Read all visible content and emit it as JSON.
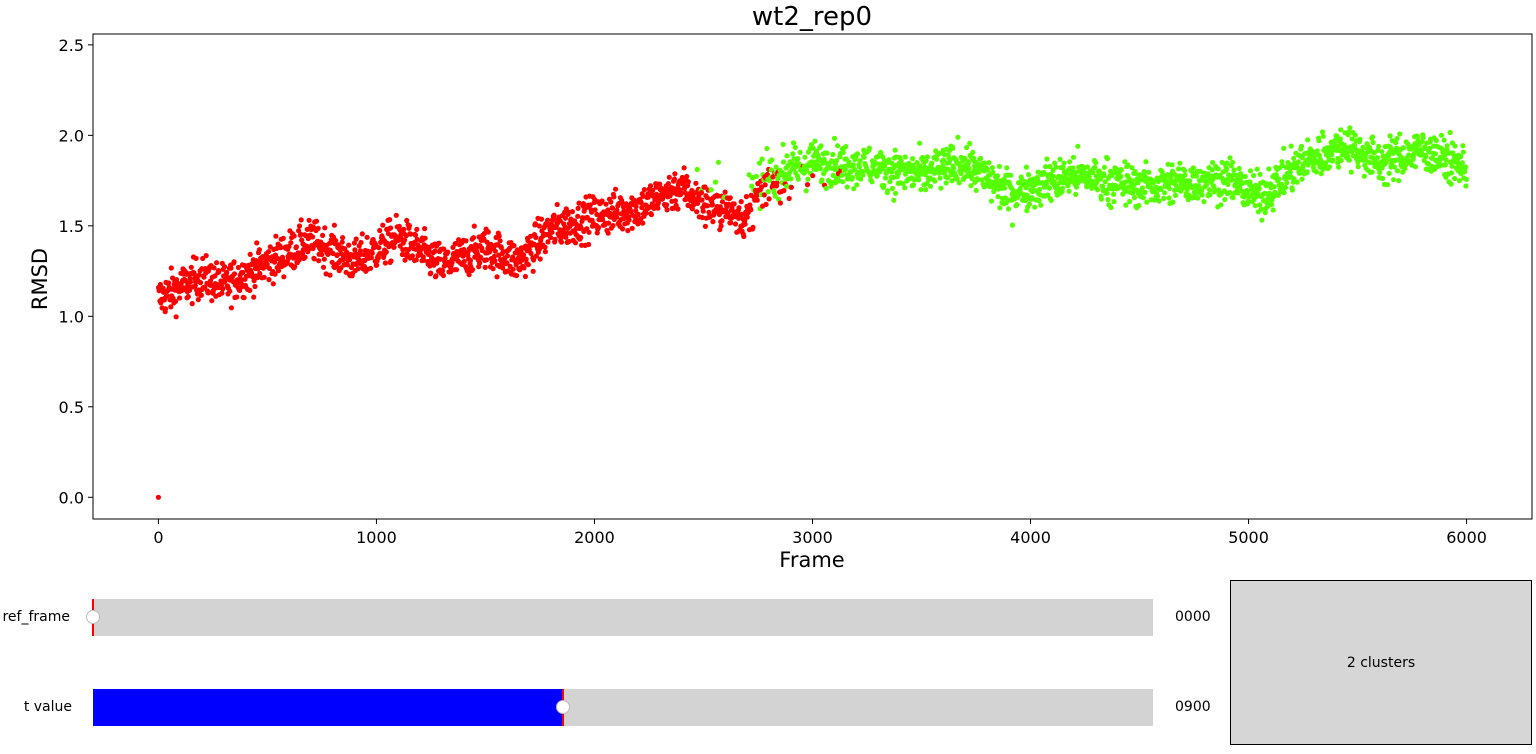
{
  "chart_data": {
    "type": "scatter",
    "title": "wt2_rep0",
    "xlabel": "Frame",
    "ylabel": "RMSD",
    "xlim": [
      -300,
      6300
    ],
    "ylim": [
      -0.12,
      2.56
    ],
    "xticks": [
      0,
      1000,
      2000,
      3000,
      4000,
      5000,
      6000
    ],
    "yticks": [
      0.0,
      0.5,
      1.0,
      1.5,
      2.0,
      2.5
    ],
    "xtick_labels": [
      "0",
      "1000",
      "2000",
      "3000",
      "4000",
      "5000",
      "6000"
    ],
    "ytick_labels": [
      "0.0",
      "0.5",
      "1.0",
      "1.5",
      "2.0",
      "2.5"
    ],
    "grid": false,
    "x_range": [
      0,
      6000
    ],
    "series": [
      {
        "color": "#ff0000",
        "trend": [
          [
            0,
            1.1
          ],
          [
            200,
            1.22
          ],
          [
            300,
            1.17
          ],
          [
            700,
            1.42
          ],
          [
            900,
            1.3
          ],
          [
            1100,
            1.44
          ],
          [
            1300,
            1.28
          ],
          [
            1500,
            1.38
          ],
          [
            1650,
            1.3
          ],
          [
            1800,
            1.48
          ],
          [
            2000,
            1.55
          ],
          [
            2200,
            1.6
          ],
          [
            2400,
            1.72
          ],
          [
            2500,
            1.62
          ],
          [
            2700,
            1.55
          ],
          [
            2800,
            1.75
          ]
        ]
      },
      {
        "color": "#55ff00",
        "trend": [
          [
            2700,
            1.72
          ],
          [
            3000,
            1.85
          ],
          [
            3200,
            1.84
          ],
          [
            3500,
            1.78
          ],
          [
            3700,
            1.85
          ],
          [
            3900,
            1.68
          ],
          [
            4200,
            1.78
          ],
          [
            4500,
            1.72
          ],
          [
            4700,
            1.74
          ],
          [
            4900,
            1.76
          ],
          [
            5050,
            1.66
          ],
          [
            5250,
            1.85
          ],
          [
            5450,
            1.95
          ],
          [
            5600,
            1.85
          ],
          [
            5800,
            1.92
          ],
          [
            6000,
            1.82
          ]
        ]
      }
    ]
  },
  "controls": {
    "ref_frame": {
      "label": "ref_frame",
      "value": "0000",
      "position": 0.0
    },
    "t_value": {
      "label": "t value",
      "value": "0900",
      "position": 0.443
    },
    "clusters_button": {
      "label": "2 clusters"
    }
  },
  "colors": {
    "slider_fill": "#0000ff",
    "slider_track": "#d3d3d3",
    "slider_marker": "#ff0000"
  }
}
